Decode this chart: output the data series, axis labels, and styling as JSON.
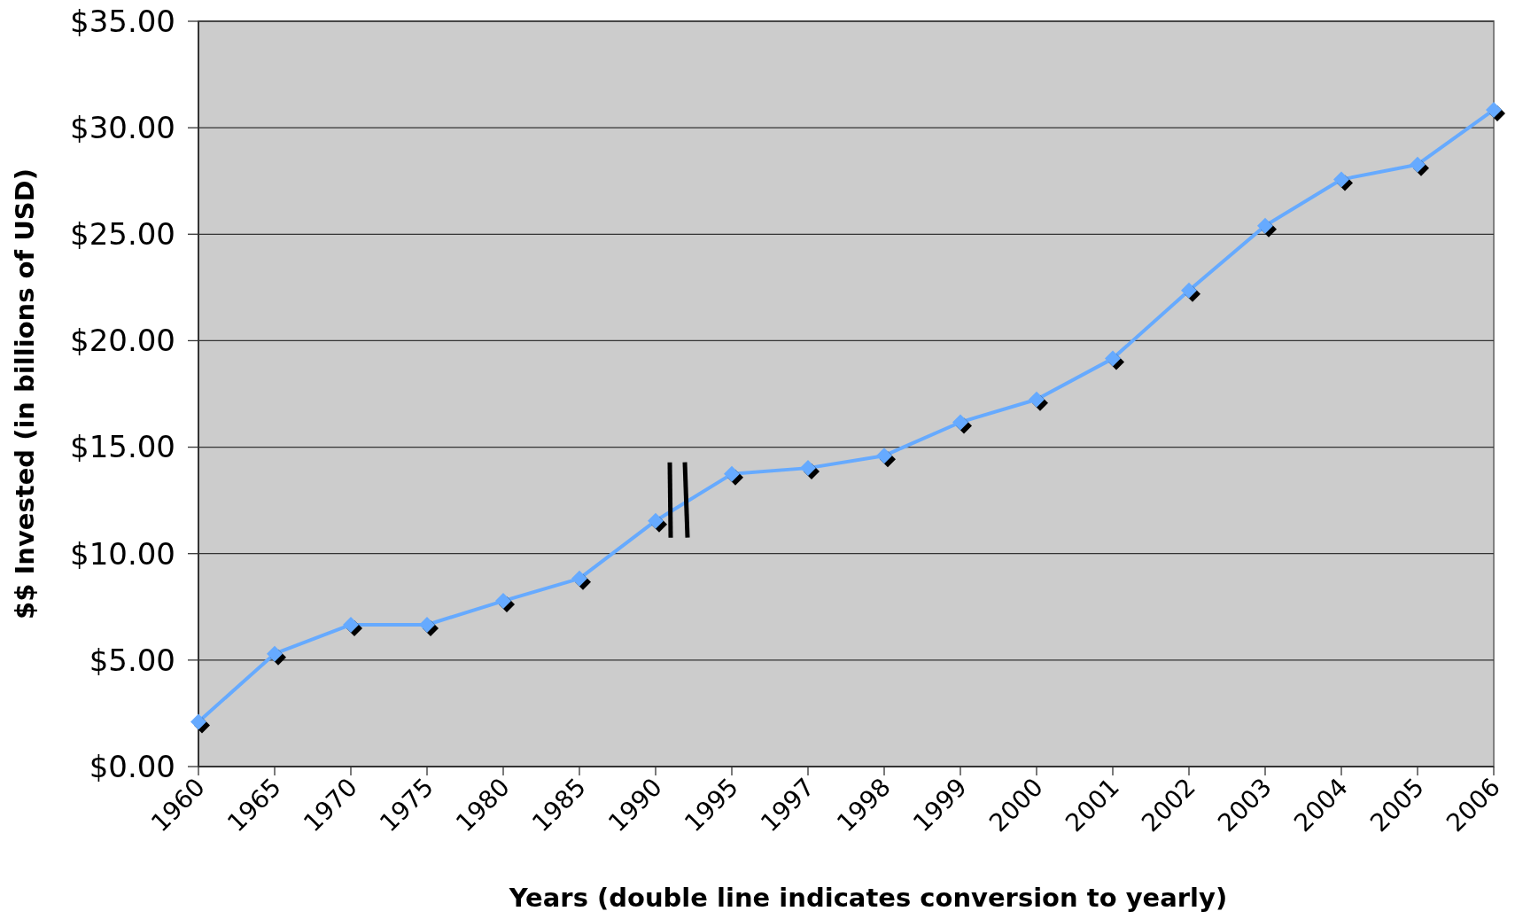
{
  "chart_data": {
    "type": "line",
    "xlabel": "Years (double line indicates conversion to yearly)",
    "ylabel": "$$ Invested (in billions of USD)",
    "categories": [
      "1960",
      "1965",
      "1970",
      "1975",
      "1980",
      "1985",
      "1990",
      "1995",
      "1997",
      "1998",
      "1999",
      "2000",
      "2001",
      "2002",
      "2003",
      "2004",
      "2005",
      "2006"
    ],
    "series": [
      {
        "color": "#66aaff",
        "values": [
          2.1,
          5.3,
          6.66,
          6.66,
          7.78,
          8.83,
          11.54,
          13.74,
          14.02,
          14.6,
          16.17,
          17.24,
          19.16,
          22.36,
          25.4,
          27.57,
          28.27,
          30.84
        ]
      }
    ],
    "ylim": [
      0,
      35
    ],
    "yticks": [
      {
        "value": 0,
        "label": "$0.00"
      },
      {
        "value": 5,
        "label": "$5.00"
      },
      {
        "value": 10,
        "label": "$10.00"
      },
      {
        "value": 15,
        "label": "$15.00"
      },
      {
        "value": 20,
        "label": "$20.00"
      },
      {
        "value": 25,
        "label": "$25.00"
      },
      {
        "value": 30,
        "label": "$30.00"
      },
      {
        "value": 35,
        "label": "$35.00"
      }
    ],
    "grid": "y",
    "marker": "diamond"
  }
}
